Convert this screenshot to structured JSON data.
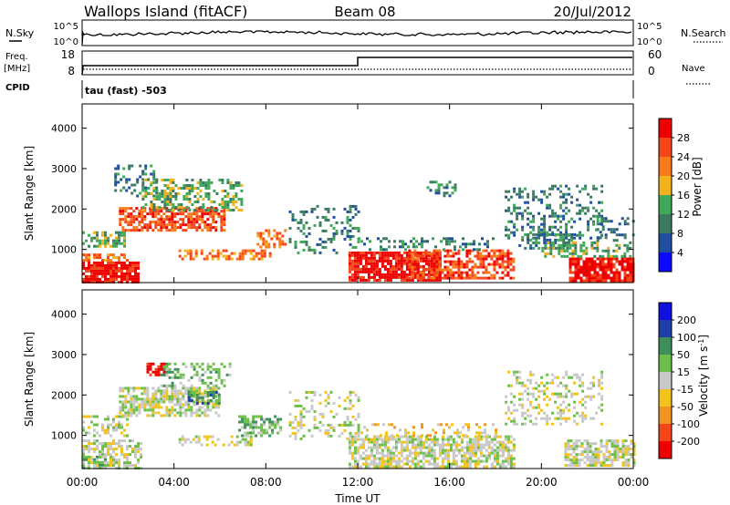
{
  "header": {
    "site": "Wallops Island (fitACF)",
    "beam": "Beam 08",
    "date": "20/Jul/2012"
  },
  "noise_panel": {
    "left_label": "N.Sky",
    "right_label": "N.Search",
    "left_ticks": [
      "10^5",
      "10^0"
    ],
    "right_ticks": [
      "10^5",
      "10^0"
    ]
  },
  "freq_panel": {
    "left_label_1": "Freq.",
    "left_label_2": "[MHz]",
    "cpid_label": "CPID",
    "right_label": "Nave",
    "left_ticks": [
      "18",
      "8"
    ],
    "right_ticks": [
      "60",
      "0"
    ],
    "freq_step_time_hours": 12
  },
  "cpid_panel": {
    "text": "tau (fast) -503"
  },
  "colors": {
    "power_scale": [
      "#0a0aff",
      "#1f4f9e",
      "#3c7a62",
      "#3fa85a",
      "#f2b21c",
      "#f97a1a",
      "#f5461a",
      "#ee0000"
    ],
    "velocity_scale": [
      "#ee0000",
      "#f5461a",
      "#f29420",
      "#f2c31c",
      "#c8c8c8",
      "#6cc04a",
      "#3f8f5a",
      "#1f3ea8",
      "#1010e0"
    ]
  },
  "chart_data": [
    {
      "type": "heatmap",
      "name": "power",
      "ylabel": "Slant Range [km]",
      "ylim": [
        180,
        4600
      ],
      "yticks": [
        "1000",
        "2000",
        "3000",
        "4000"
      ],
      "colorbar_label": "Power [dB]",
      "colorbar_ticks": [
        "4",
        "8",
        "12",
        "16",
        "20",
        "24",
        "28"
      ],
      "xlim_hours": [
        0,
        24
      ],
      "regions": [
        {
          "t0": 0.0,
          "t1": 2.4,
          "r0": 200,
          "r1": 700,
          "level": 7,
          "density": 0.85
        },
        {
          "t0": 0.0,
          "t1": 2.0,
          "r0": 700,
          "r1": 900,
          "level": 5,
          "density": 0.6
        },
        {
          "t0": 0.0,
          "t1": 1.8,
          "r0": 1100,
          "r1": 1450,
          "level": 3,
          "density": 0.55
        },
        {
          "t0": 1.6,
          "t1": 6.2,
          "r0": 1500,
          "r1": 2050,
          "level": 6,
          "density": 0.7
        },
        {
          "t0": 2.6,
          "t1": 7.0,
          "r0": 2000,
          "r1": 2750,
          "level": 3,
          "density": 0.45
        },
        {
          "t0": 1.4,
          "t1": 3.2,
          "r0": 2300,
          "r1": 3100,
          "level": 2,
          "density": 0.3
        },
        {
          "t0": 4.2,
          "t1": 8.2,
          "r0": 750,
          "r1": 1000,
          "level": 5,
          "density": 0.55
        },
        {
          "t0": 7.6,
          "t1": 8.8,
          "r0": 1050,
          "r1": 1500,
          "level": 5,
          "density": 0.5
        },
        {
          "t0": 9.0,
          "t1": 12.0,
          "r0": 900,
          "r1": 2100,
          "level": 2,
          "density": 0.25
        },
        {
          "t0": 11.6,
          "t1": 15.6,
          "r0": 250,
          "r1": 950,
          "level": 7,
          "density": 0.85
        },
        {
          "t0": 14.2,
          "t1": 18.8,
          "r0": 300,
          "r1": 1000,
          "level": 6,
          "density": 0.6
        },
        {
          "t0": 12.0,
          "t1": 18.0,
          "r0": 1000,
          "r1": 1300,
          "level": 2,
          "density": 0.3
        },
        {
          "t0": 15.0,
          "t1": 16.2,
          "r0": 2300,
          "r1": 2700,
          "level": 2,
          "density": 0.4
        },
        {
          "t0": 18.4,
          "t1": 22.6,
          "r0": 1300,
          "r1": 2600,
          "level": 2,
          "density": 0.3
        },
        {
          "t0": 19.0,
          "t1": 21.4,
          "r0": 1000,
          "r1": 1400,
          "level": 2,
          "density": 0.4
        },
        {
          "t0": 21.2,
          "t1": 24.0,
          "r0": 250,
          "r1": 800,
          "level": 7,
          "density": 0.85
        },
        {
          "t0": 20.0,
          "t1": 24.0,
          "r0": 800,
          "r1": 1200,
          "level": 3,
          "density": 0.4
        },
        {
          "t0": 22.4,
          "t1": 24.0,
          "r0": 1200,
          "r1": 1800,
          "level": 2,
          "density": 0.3
        }
      ]
    },
    {
      "type": "heatmap",
      "name": "velocity",
      "ylabel": "Slant Range [km]",
      "ylim": [
        180,
        4600
      ],
      "yticks": [
        "1000",
        "2000",
        "3000",
        "4000"
      ],
      "xlabel": "Time UT",
      "xticks": [
        "00:00",
        "04:00",
        "08:00",
        "12:00",
        "16:00",
        "20:00",
        "00:00"
      ],
      "xlim_hours": [
        0,
        24
      ],
      "colorbar_label": "Velocity [m s^-1]",
      "colorbar_ticks": [
        "200",
        "100",
        "50",
        "15",
        "-15",
        "-50",
        "-100",
        "-200"
      ],
      "regions": [
        {
          "t0": 0.0,
          "t1": 2.6,
          "r0": 200,
          "r1": 900,
          "level": 4,
          "density": 0.55
        },
        {
          "t0": 0.0,
          "t1": 1.0,
          "r0": 200,
          "r1": 500,
          "level": 5,
          "density": 0.5
        },
        {
          "t0": 0.0,
          "t1": 2.0,
          "r0": 1000,
          "r1": 1500,
          "level": 4,
          "density": 0.5
        },
        {
          "t0": 1.6,
          "t1": 6.0,
          "r0": 1500,
          "r1": 2200,
          "level": 4,
          "density": 0.7
        },
        {
          "t0": 2.8,
          "t1": 3.6,
          "r0": 2500,
          "r1": 2800,
          "level": 0,
          "density": 0.7
        },
        {
          "t0": 4.6,
          "t1": 6.0,
          "r0": 1800,
          "r1": 2100,
          "level": 6,
          "density": 0.55
        },
        {
          "t0": 3.4,
          "t1": 6.4,
          "r0": 2200,
          "r1": 2800,
          "level": 5,
          "density": 0.35
        },
        {
          "t0": 6.8,
          "t1": 8.6,
          "r0": 1000,
          "r1": 1500,
          "level": 5,
          "density": 0.6
        },
        {
          "t0": 4.2,
          "t1": 7.4,
          "r0": 750,
          "r1": 1000,
          "level": 4,
          "density": 0.45
        },
        {
          "t0": 9.0,
          "t1": 12.0,
          "r0": 900,
          "r1": 2100,
          "level": 4,
          "density": 0.25
        },
        {
          "t0": 11.6,
          "t1": 18.8,
          "r0": 250,
          "r1": 1000,
          "level": 4,
          "density": 0.7
        },
        {
          "t0": 18.4,
          "t1": 22.6,
          "r0": 1300,
          "r1": 2600,
          "level": 4,
          "density": 0.3
        },
        {
          "t0": 21.0,
          "t1": 24.0,
          "r0": 250,
          "r1": 900,
          "level": 4,
          "density": 0.7
        },
        {
          "t0": 12.0,
          "t1": 18.0,
          "r0": 1000,
          "r1": 1300,
          "level": 3,
          "density": 0.25
        }
      ]
    }
  ]
}
